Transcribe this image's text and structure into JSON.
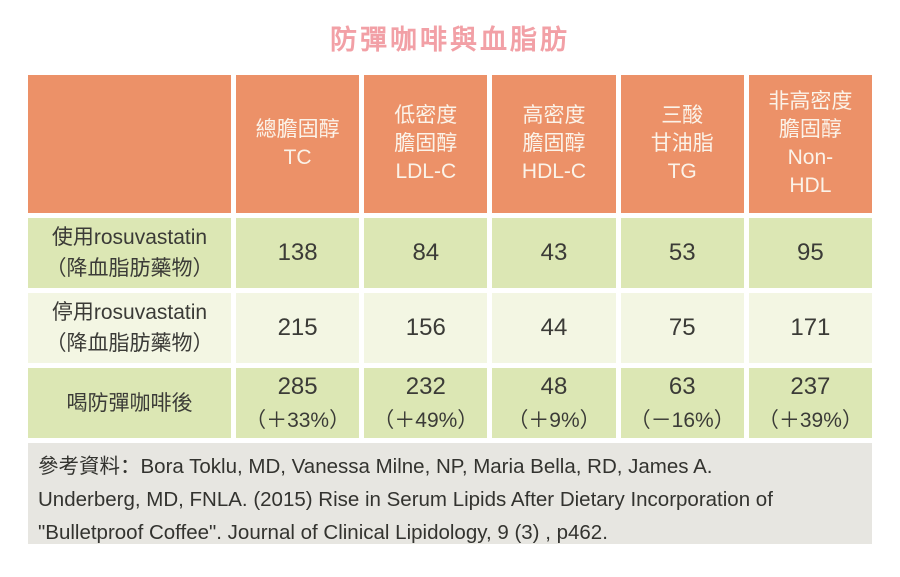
{
  "title": "防彈咖啡與血脂肪",
  "colors": {
    "title_pink": "#F2A0A6",
    "header_orange": "#EC9168",
    "row_green": "#DCE7B4",
    "row_light": "#F3F6E3",
    "footer_gray": "#E7E6E1",
    "header_text": "#FBF3E9",
    "body_text": "#3B3B37"
  },
  "table": {
    "columns": [
      {
        "lines": []
      },
      {
        "lines": [
          "總膽固醇",
          "TC"
        ]
      },
      {
        "lines": [
          "低密度",
          "膽固醇",
          "LDL-C"
        ]
      },
      {
        "lines": [
          "高密度",
          "膽固醇",
          "HDL-C"
        ]
      },
      {
        "lines": [
          "三酸",
          "甘油脂",
          "TG"
        ]
      },
      {
        "lines": [
          "非高密度",
          "膽固醇",
          "Non-",
          "HDL"
        ]
      }
    ],
    "rows": [
      {
        "label": [
          "使用rosuvastatin",
          "（降血脂肪藥物）"
        ],
        "values": [
          "138",
          "84",
          "43",
          "53",
          "95"
        ]
      },
      {
        "label": [
          "停用rosuvastatin",
          "（降血脂肪藥物）"
        ],
        "values": [
          "215",
          "156",
          "44",
          "75",
          "171"
        ]
      },
      {
        "label": [
          "喝防彈咖啡後"
        ],
        "values": [
          [
            "285",
            "（＋33%）"
          ],
          [
            "232",
            "（＋49%）"
          ],
          [
            "48",
            "（＋9%）"
          ],
          [
            "63",
            "（－16%）"
          ],
          [
            "237",
            "（＋39%）"
          ]
        ]
      }
    ]
  },
  "footer": {
    "lines": [
      "參考資料：Bora Toklu, MD, Vanessa Milne, NP, Maria Bella, RD, James A.",
      "Underberg, MD, FNLA. (2015)  Rise in Serum Lipids After Dietary Incorporation of",
      "\"Bulletproof Coffee\".  Journal of Clinical Lipidology, 9 (3) , p462."
    ]
  },
  "chart_data": {
    "type": "table",
    "title": "防彈咖啡與血脂肪",
    "columns": [
      "總膽固醇 TC",
      "低密度膽固醇 LDL-C",
      "高密度膽固醇 HDL-C",
      "三酸甘油脂 TG",
      "非高密度膽固醇 Non-HDL"
    ],
    "rows": [
      {
        "label": "使用rosuvastatin（降血脂肪藥物）",
        "values": [
          138,
          84,
          43,
          53,
          95
        ]
      },
      {
        "label": "停用rosuvastatin（降血脂肪藥物）",
        "values": [
          215,
          156,
          44,
          75,
          171
        ]
      },
      {
        "label": "喝防彈咖啡後",
        "values": [
          285,
          232,
          48,
          63,
          237
        ],
        "percent_change": [
          "+33%",
          "+49%",
          "+9%",
          "-16%",
          "+39%"
        ]
      }
    ],
    "source": "參考資料：Bora Toklu, MD, Vanessa Milne, NP, Maria Bella, RD, James A. Underberg, MD, FNLA. (2015) Rise in Serum Lipids After Dietary Incorporation of \"Bulletproof Coffee\". Journal of Clinical Lipidology, 9 (3), p462."
  }
}
